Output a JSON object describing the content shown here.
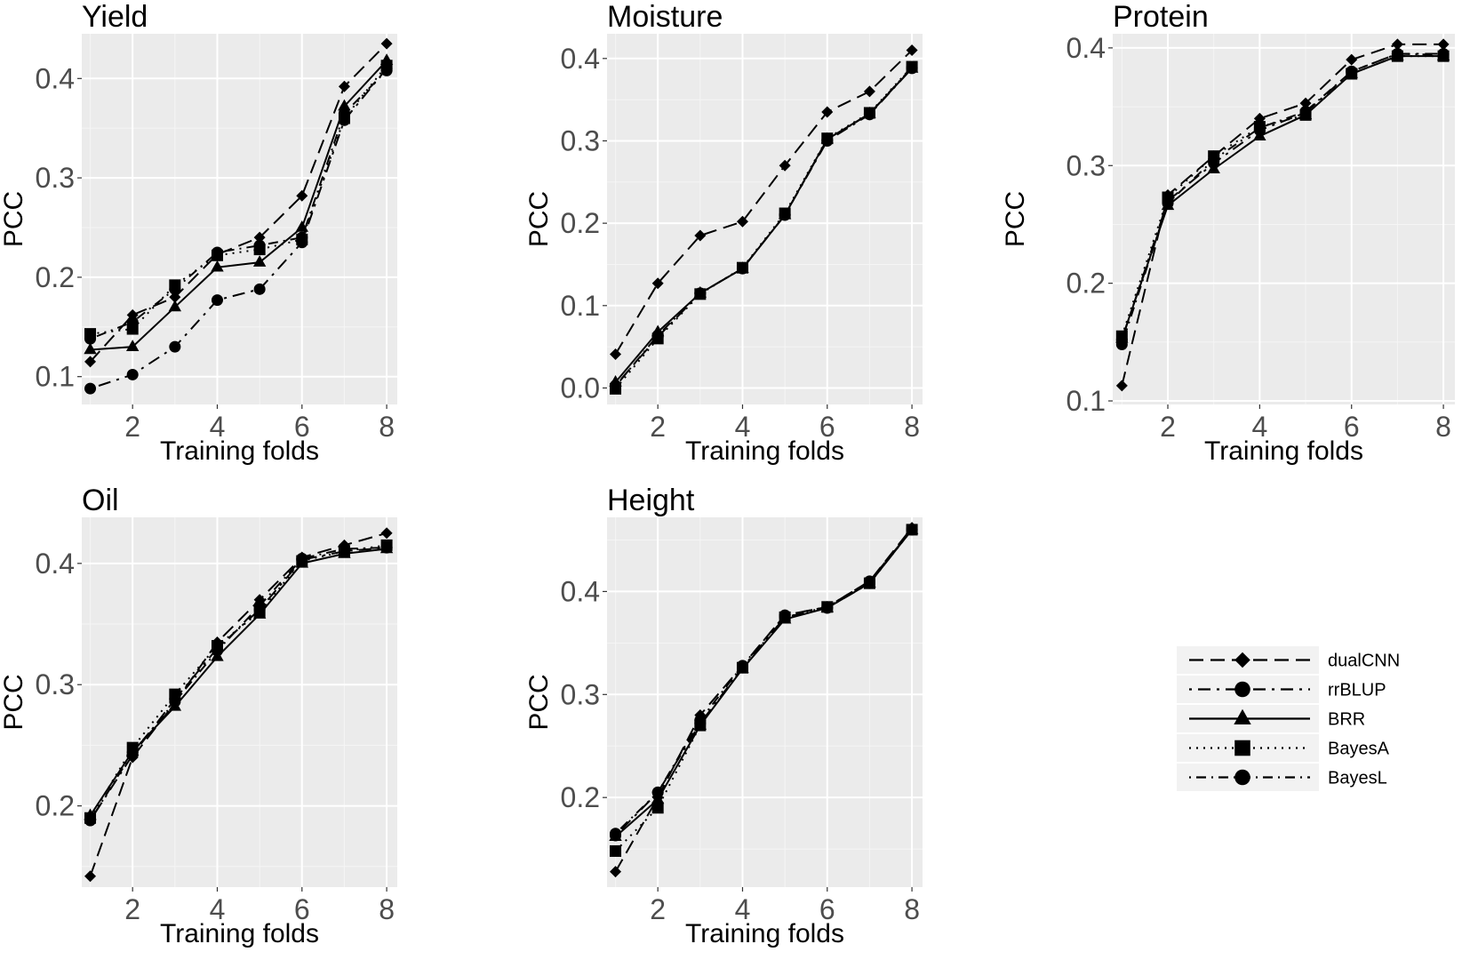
{
  "colors": {
    "panel_bg": "#ebebeb",
    "grid_major": "#ffffff",
    "grid_minor": "#f5f5f5",
    "series": "#000000",
    "tick_text": "#4d4d4d",
    "legend_key_bg": "#f2f2f2"
  },
  "legend": {
    "entries": [
      {
        "name": "dualCNN",
        "dash": "dashed",
        "marker": "diamond"
      },
      {
        "name": "rrBLUP",
        "dash": "dotdash-long",
        "marker": "circle"
      },
      {
        "name": "BRR",
        "dash": "solid",
        "marker": "triangle"
      },
      {
        "name": "BayesA",
        "dash": "dotted",
        "marker": "square"
      },
      {
        "name": "BayesL",
        "dash": "dotdash",
        "marker": "circle"
      }
    ]
  },
  "chart_data": [
    {
      "type": "line",
      "title": "Yield",
      "xlabel": "Training folds",
      "ylabel": "PCC",
      "xlim": [
        0.8,
        8.25
      ],
      "ylim": [
        0.072,
        0.445
      ],
      "xticks": [
        2,
        4,
        6,
        8
      ],
      "yticks": [
        0.1,
        0.2,
        0.3,
        0.4
      ],
      "x": [
        1,
        2,
        3,
        4,
        5,
        6,
        7,
        8
      ],
      "series": [
        {
          "name": "dualCNN",
          "values": [
            0.115,
            0.162,
            0.18,
            0.223,
            0.24,
            0.282,
            0.392,
            0.435
          ]
        },
        {
          "name": "rrBLUP",
          "values": [
            0.088,
            0.102,
            0.13,
            0.177,
            0.188,
            0.235,
            0.358,
            0.41
          ]
        },
        {
          "name": "BRR",
          "values": [
            0.127,
            0.13,
            0.17,
            0.21,
            0.215,
            0.25,
            0.372,
            0.418
          ]
        },
        {
          "name": "BayesA",
          "values": [
            0.143,
            0.148,
            0.192,
            0.222,
            0.228,
            0.238,
            0.36,
            0.413
          ]
        },
        {
          "name": "BayesL",
          "values": [
            0.138,
            0.155,
            0.188,
            0.225,
            0.232,
            0.24,
            0.365,
            0.408
          ]
        }
      ]
    },
    {
      "type": "line",
      "title": "Moisture",
      "xlabel": "Training folds",
      "ylabel": "PCC",
      "xlim": [
        0.8,
        8.25
      ],
      "ylim": [
        -0.02,
        0.43
      ],
      "xticks": [
        2,
        4,
        6,
        8
      ],
      "yticks": [
        0.0,
        0.1,
        0.2,
        0.3,
        0.4
      ],
      "x": [
        1,
        2,
        3,
        4,
        5,
        6,
        7,
        8
      ],
      "series": [
        {
          "name": "dualCNN",
          "values": [
            0.041,
            0.127,
            0.185,
            0.202,
            0.27,
            0.335,
            0.36,
            0.41
          ]
        },
        {
          "name": "rrBLUP",
          "values": [
            0.003,
            0.062,
            0.115,
            0.145,
            0.21,
            0.3,
            0.332,
            0.388
          ]
        },
        {
          "name": "BRR",
          "values": [
            0.007,
            0.068,
            0.115,
            0.145,
            0.21,
            0.302,
            0.333,
            0.388
          ]
        },
        {
          "name": "BayesA",
          "values": [
            -0.001,
            0.06,
            0.114,
            0.146,
            0.212,
            0.303,
            0.334,
            0.39
          ]
        },
        {
          "name": "BayesL",
          "values": [
            0.002,
            0.064,
            0.115,
            0.145,
            0.21,
            0.301,
            0.333,
            0.389
          ]
        }
      ]
    },
    {
      "type": "line",
      "title": "Protein",
      "xlabel": "Training folds",
      "ylabel": "PCC",
      "xlim": [
        0.8,
        8.25
      ],
      "ylim": [
        0.097,
        0.412
      ],
      "xticks": [
        2,
        4,
        6,
        8
      ],
      "yticks": [
        0.1,
        0.2,
        0.3,
        0.4
      ],
      "x": [
        1,
        2,
        3,
        4,
        5,
        6,
        7,
        8
      ],
      "series": [
        {
          "name": "dualCNN",
          "values": [
            0.113,
            0.275,
            0.308,
            0.34,
            0.353,
            0.39,
            0.403,
            0.403
          ]
        },
        {
          "name": "rrBLUP",
          "values": [
            0.152,
            0.27,
            0.302,
            0.33,
            0.345,
            0.38,
            0.395,
            0.395
          ]
        },
        {
          "name": "BRR",
          "values": [
            0.153,
            0.266,
            0.297,
            0.325,
            0.343,
            0.378,
            0.393,
            0.393
          ]
        },
        {
          "name": "BayesA",
          "values": [
            0.155,
            0.273,
            0.308,
            0.333,
            0.343,
            0.378,
            0.393,
            0.393
          ]
        },
        {
          "name": "BayesL",
          "values": [
            0.148,
            0.268,
            0.305,
            0.332,
            0.346,
            0.38,
            0.395,
            0.394
          ]
        }
      ]
    },
    {
      "type": "line",
      "title": "Oil",
      "xlabel": "Training folds",
      "ylabel": "PCC",
      "xlim": [
        0.8,
        8.25
      ],
      "ylim": [
        0.133,
        0.438
      ],
      "xticks": [
        2,
        4,
        6,
        8
      ],
      "yticks": [
        0.2,
        0.3,
        0.4
      ],
      "x": [
        1,
        2,
        3,
        4,
        5,
        6,
        7,
        8
      ],
      "series": [
        {
          "name": "dualCNN",
          "values": [
            0.142,
            0.24,
            0.285,
            0.335,
            0.37,
            0.405,
            0.415,
            0.425
          ]
        },
        {
          "name": "rrBLUP",
          "values": [
            0.188,
            0.242,
            0.288,
            0.33,
            0.362,
            0.403,
            0.41,
            0.413
          ]
        },
        {
          "name": "BRR",
          "values": [
            0.192,
            0.245,
            0.282,
            0.323,
            0.358,
            0.4,
            0.408,
            0.412
          ]
        },
        {
          "name": "BayesA",
          "values": [
            0.19,
            0.248,
            0.292,
            0.332,
            0.36,
            0.402,
            0.41,
            0.415
          ]
        },
        {
          "name": "BayesL",
          "values": [
            0.188,
            0.244,
            0.286,
            0.328,
            0.365,
            0.404,
            0.412,
            0.413
          ]
        }
      ]
    },
    {
      "type": "line",
      "title": "Height",
      "xlabel": "Training folds",
      "ylabel": "PCC",
      "xlim": [
        0.8,
        8.25
      ],
      "ylim": [
        0.113,
        0.472
      ],
      "xticks": [
        2,
        4,
        6,
        8
      ],
      "yticks": [
        0.2,
        0.3,
        0.4
      ],
      "x": [
        1,
        2,
        3,
        4,
        5,
        6,
        7,
        8
      ],
      "series": [
        {
          "name": "dualCNN",
          "values": [
            0.128,
            0.2,
            0.28,
            0.328,
            0.377,
            0.385,
            0.41,
            0.462
          ]
        },
        {
          "name": "rrBLUP",
          "values": [
            0.163,
            0.205,
            0.272,
            0.326,
            0.375,
            0.384,
            0.408,
            0.46
          ]
        },
        {
          "name": "BRR",
          "values": [
            0.162,
            0.198,
            0.27,
            0.325,
            0.373,
            0.384,
            0.408,
            0.46
          ]
        },
        {
          "name": "BayesA",
          "values": [
            0.148,
            0.19,
            0.27,
            0.326,
            0.375,
            0.385,
            0.408,
            0.46
          ]
        },
        {
          "name": "BayesL",
          "values": [
            0.165,
            0.205,
            0.275,
            0.328,
            0.377,
            0.385,
            0.41,
            0.46
          ]
        }
      ]
    }
  ]
}
